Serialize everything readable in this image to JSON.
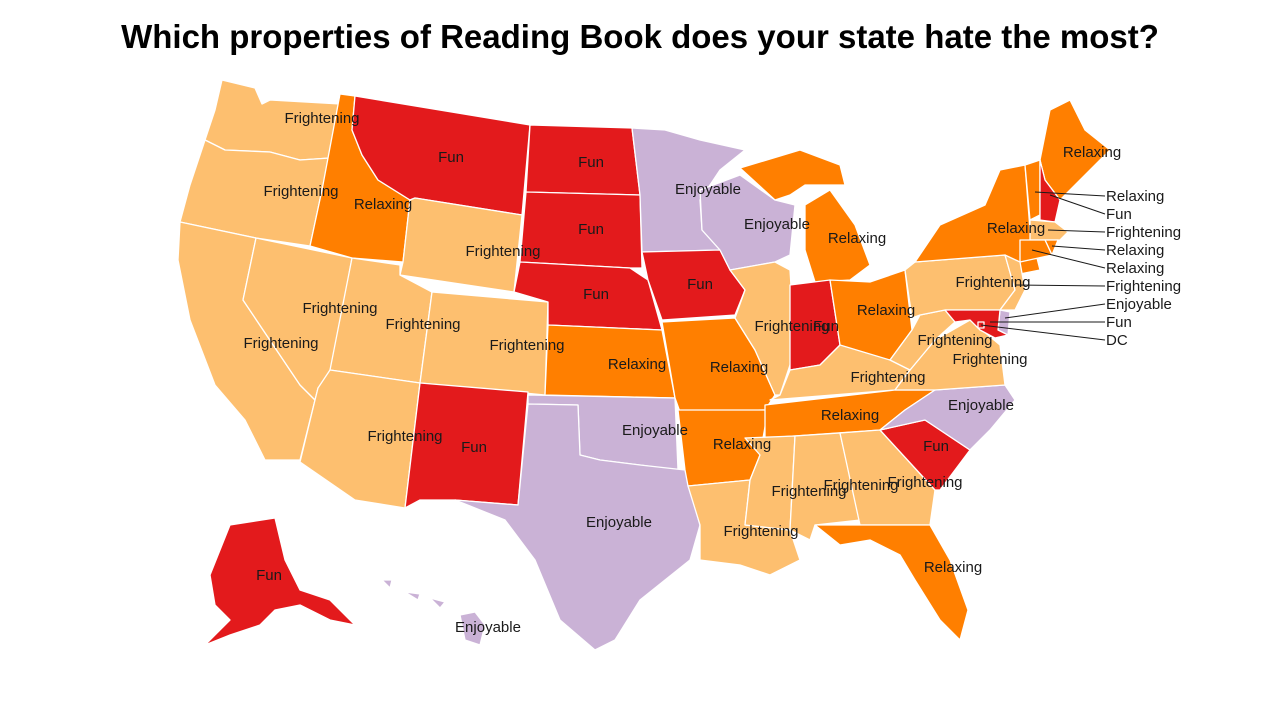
{
  "title": "Which properties of Reading Book does your state hate the most?",
  "colors": {
    "Frightening": "#fdbf6f",
    "Relaxing": "#ff7f00",
    "Fun": "#e31a1c",
    "Enjoyable": "#cab2d6"
  },
  "states": [
    {
      "name": "WA",
      "value": "Frightening"
    },
    {
      "name": "OR",
      "value": "Frightening"
    },
    {
      "name": "CA",
      "value": "Frightening"
    },
    {
      "name": "NV",
      "value": "Frightening"
    },
    {
      "name": "ID",
      "value": "Relaxing"
    },
    {
      "name": "MT",
      "value": "Fun"
    },
    {
      "name": "WY",
      "value": "Frightening"
    },
    {
      "name": "UT",
      "value": "Frightening"
    },
    {
      "name": "AZ",
      "value": "Frightening"
    },
    {
      "name": "CO",
      "value": "Frightening"
    },
    {
      "name": "NM",
      "value": "Fun"
    },
    {
      "name": "ND",
      "value": "Fun"
    },
    {
      "name": "SD",
      "value": "Fun"
    },
    {
      "name": "NE",
      "value": "Fun"
    },
    {
      "name": "KS",
      "value": "Relaxing"
    },
    {
      "name": "OK",
      "value": "Enjoyable"
    },
    {
      "name": "TX",
      "value": "Enjoyable"
    },
    {
      "name": "MN",
      "value": "Enjoyable"
    },
    {
      "name": "IA",
      "value": "Fun"
    },
    {
      "name": "MO",
      "value": "Relaxing"
    },
    {
      "name": "AR",
      "value": "Relaxing"
    },
    {
      "name": "LA",
      "value": "Frightening"
    },
    {
      "name": "WI",
      "value": "Enjoyable"
    },
    {
      "name": "IL",
      "value": "Frightening"
    },
    {
      "name": "MI",
      "value": "Relaxing"
    },
    {
      "name": "IN",
      "value": "Fun"
    },
    {
      "name": "OH",
      "value": "Relaxing"
    },
    {
      "name": "KY",
      "value": "Frightening"
    },
    {
      "name": "TN",
      "value": "Relaxing"
    },
    {
      "name": "MS",
      "value": "Frightening"
    },
    {
      "name": "AL",
      "value": "Frightening"
    },
    {
      "name": "GA",
      "value": "Frightening"
    },
    {
      "name": "FL",
      "value": "Relaxing"
    },
    {
      "name": "SC",
      "value": "Fun"
    },
    {
      "name": "NC",
      "value": "Enjoyable"
    },
    {
      "name": "VA",
      "value": "Frightening"
    },
    {
      "name": "WV",
      "value": "Frightening"
    },
    {
      "name": "PA",
      "value": "Frightening"
    },
    {
      "name": "NY",
      "value": "Relaxing"
    },
    {
      "name": "ME",
      "value": "Relaxing"
    },
    {
      "name": "AK",
      "value": "Fun"
    },
    {
      "name": "HI",
      "value": "Enjoyable"
    },
    {
      "name": "VT",
      "value": "Relaxing"
    },
    {
      "name": "NH",
      "value": "Fun"
    },
    {
      "name": "MA",
      "value": "Frightening"
    },
    {
      "name": "RI",
      "value": "Relaxing"
    },
    {
      "name": "CT",
      "value": "Relaxing"
    },
    {
      "name": "NJ",
      "value": "Frightening"
    },
    {
      "name": "DE",
      "value": "Enjoyable"
    },
    {
      "name": "MD",
      "value": "Fun"
    },
    {
      "name": "DC",
      "value": "DC"
    }
  ]
}
